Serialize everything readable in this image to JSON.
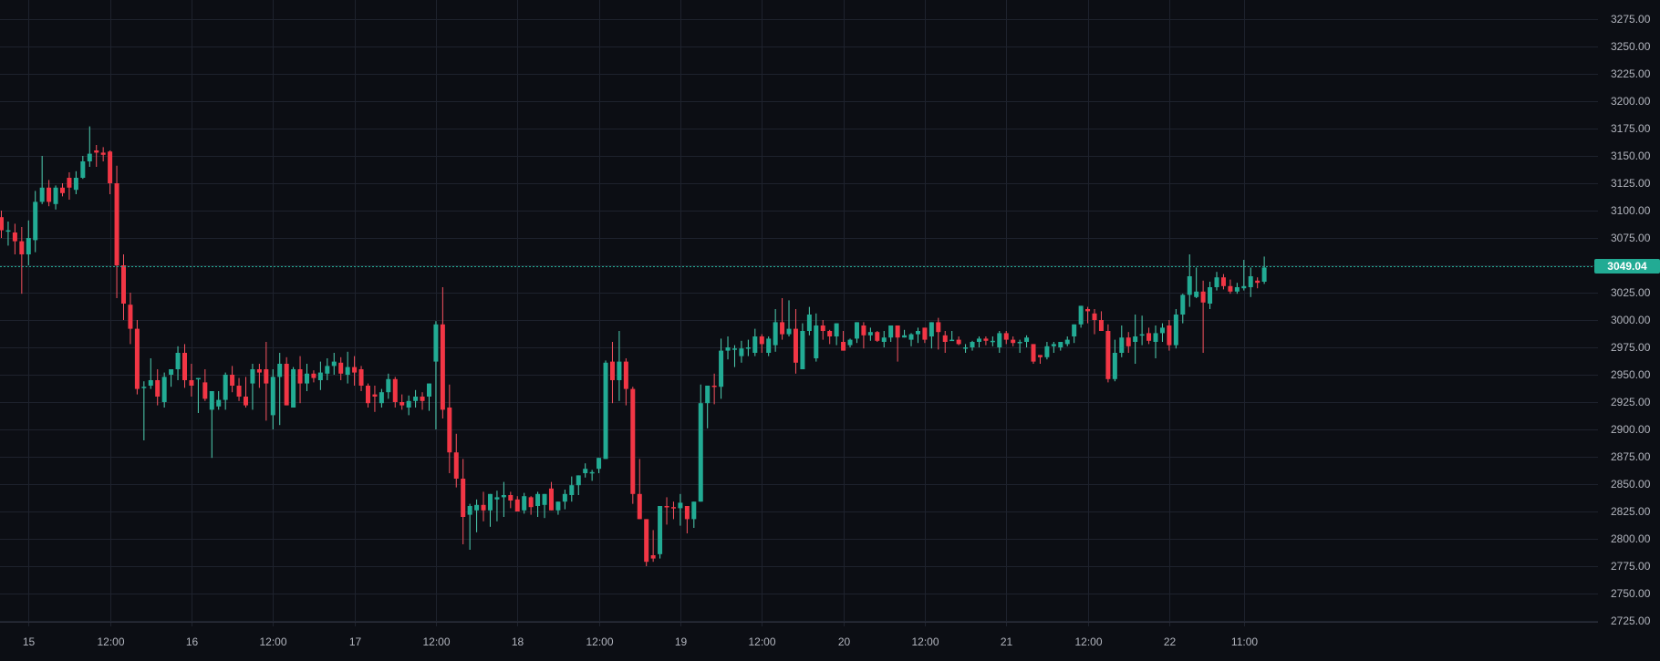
{
  "chart_data": {
    "type": "candlestick",
    "title": "",
    "xlabel": "",
    "ylabel": "",
    "ylim": [
      2725,
      3275
    ],
    "grid": true,
    "interval": "1h",
    "colors": {
      "background": "#0c0e14",
      "grid": "#1e222d",
      "up": "#22ab94",
      "up_wick": "#4fd1b3",
      "down": "#f23645",
      "down_wick": "#f7525f",
      "axis_text": "#b2b5be",
      "last_price_bg": "#22ab94",
      "last_price_line": "#22ab94"
    },
    "y_ticks": [
      "3275.00",
      "3250.00",
      "3225.00",
      "3200.00",
      "3175.00",
      "3150.00",
      "3125.00",
      "3100.00",
      "3075.00",
      "3025.00",
      "3000.00",
      "2975.00",
      "2950.00",
      "2925.00",
      "2900.00",
      "2875.00",
      "2850.00",
      "2825.00",
      "2800.00",
      "2775.00",
      "2750.00",
      "2725.00"
    ],
    "y_tick_values": [
      3275,
      3250,
      3225,
      3200,
      3175,
      3150,
      3125,
      3100,
      3075,
      3050,
      3025,
      3000,
      2975,
      2950,
      2925,
      2900,
      2875,
      2850,
      2825,
      2800,
      2775,
      2750,
      2725
    ],
    "x_ticks": [
      {
        "label": "15",
        "index": 4
      },
      {
        "label": "12:00",
        "index": 16
      },
      {
        "label": "16",
        "index": 28
      },
      {
        "label": "12:00",
        "index": 40
      },
      {
        "label": "17",
        "index": 52
      },
      {
        "label": "12:00",
        "index": 64
      },
      {
        "label": "18",
        "index": 76
      },
      {
        "label": "12:00",
        "index": 88
      },
      {
        "label": "19",
        "index": 100
      },
      {
        "label": "12:00",
        "index": 112
      },
      {
        "label": "20",
        "index": 124
      },
      {
        "label": "12:00",
        "index": 136
      },
      {
        "label": "21",
        "index": 148
      },
      {
        "label": "12:00",
        "index": 160
      },
      {
        "label": "22",
        "index": 172
      },
      {
        "label": "11:00",
        "index": 183
      }
    ],
    "last_price": 3049.04,
    "last_price_label": "3049.04",
    "candles_ohlc": [
      [
        3094,
        3100,
        3075,
        3082
      ],
      [
        3082,
        3090,
        3068,
        3082
      ],
      [
        3080,
        3088,
        3060,
        3072
      ],
      [
        3072,
        3085,
        3024,
        3060
      ],
      [
        3060,
        3091,
        3050,
        3075
      ],
      [
        3073,
        3118,
        3062,
        3108
      ],
      [
        3108,
        3150,
        3106,
        3121
      ],
      [
        3121,
        3128,
        3104,
        3108
      ],
      [
        3106,
        3123,
        3101,
        3121
      ],
      [
        3121,
        3125,
        3113,
        3116
      ],
      [
        3130,
        3135,
        3110,
        3121
      ],
      [
        3119,
        3136,
        3115,
        3130
      ],
      [
        3130,
        3150,
        3129,
        3145
      ],
      [
        3145,
        3177,
        3140,
        3152
      ],
      [
        3155,
        3160,
        3140,
        3153
      ],
      [
        3153,
        3158,
        3145,
        3151
      ],
      [
        3154,
        3155,
        3115,
        3125
      ],
      [
        3125,
        3141,
        3020,
        3050
      ],
      [
        3050,
        3060,
        3000,
        3015
      ],
      [
        3014,
        3025,
        2978,
        2992
      ],
      [
        2992,
        3000,
        2932,
        2937
      ],
      [
        2938,
        2944,
        2890,
        2939
      ],
      [
        2940,
        2965,
        2937,
        2945
      ],
      [
        2945,
        2955,
        2922,
        2930
      ],
      [
        2925,
        2952,
        2920,
        2948
      ],
      [
        2950,
        2955,
        2939,
        2955
      ],
      [
        2955,
        2976,
        2945,
        2970
      ],
      [
        2970,
        2978,
        2938,
        2945
      ],
      [
        2945,
        2960,
        2930,
        2940
      ],
      [
        2947,
        2945,
        2915,
        2947
      ],
      [
        2943,
        2955,
        2926,
        2928
      ],
      [
        2918,
        2925,
        2874,
        2935
      ],
      [
        2921,
        2935,
        2918,
        2927
      ],
      [
        2927,
        2952,
        2918,
        2950
      ],
      [
        2950,
        2958,
        2934,
        2940
      ],
      [
        2940,
        2947,
        2926,
        2930
      ],
      [
        2930,
        2948,
        2920,
        2922
      ],
      [
        2942,
        2960,
        2918,
        2955
      ],
      [
        2955,
        2960,
        2938,
        2952
      ],
      [
        2955,
        2980,
        2908,
        2942
      ],
      [
        2913,
        2955,
        2900,
        2948
      ],
      [
        2948,
        2970,
        2904,
        2960
      ],
      [
        2960,
        2966,
        2926,
        2922
      ],
      [
        2920,
        2957,
        2930,
        2955
      ],
      [
        2955,
        2967,
        2924,
        2942
      ],
      [
        2942,
        2960,
        2935,
        2951
      ],
      [
        2951,
        2954,
        2943,
        2947
      ],
      [
        2945,
        2962,
        2936,
        2952
      ],
      [
        2951,
        2965,
        2945,
        2958
      ],
      [
        2958,
        2970,
        2950,
        2962
      ],
      [
        2961,
        2966,
        2945,
        2951
      ],
      [
        2950,
        2971,
        2942,
        2957
      ],
      [
        2957,
        2967,
        2940,
        2952
      ],
      [
        2955,
        2958,
        2935,
        2940
      ],
      [
        2940,
        2942,
        2920,
        2924
      ],
      [
        2932,
        2940,
        2916,
        2930
      ],
      [
        2924,
        2937,
        2920,
        2934
      ],
      [
        2934,
        2951,
        2928,
        2946
      ],
      [
        2946,
        2948,
        2920,
        2925
      ],
      [
        2925,
        2932,
        2918,
        2922
      ],
      [
        2920,
        2931,
        2913,
        2926
      ],
      [
        2926,
        2936,
        2920,
        2930
      ],
      [
        2930,
        2934,
        2918,
        2926
      ],
      [
        2930,
        2936,
        2917,
        2942
      ],
      [
        2962,
        2999,
        2900,
        2996
      ],
      [
        2996,
        3030,
        2910,
        2918
      ],
      [
        2920,
        2941,
        2860,
        2879
      ],
      [
        2879,
        2896,
        2847,
        2855
      ],
      [
        2855,
        2873,
        2795,
        2820
      ],
      [
        2822,
        2832,
        2790,
        2830
      ],
      [
        2826,
        2836,
        2806,
        2831
      ],
      [
        2831,
        2843,
        2816,
        2826
      ],
      [
        2826,
        2840,
        2811,
        2841
      ],
      [
        2836,
        2844,
        2816,
        2838
      ],
      [
        2838,
        2852,
        2820,
        2840
      ],
      [
        2840,
        2843,
        2828,
        2835
      ],
      [
        2836,
        2839,
        2825,
        2825
      ],
      [
        2826,
        2842,
        2823,
        2839
      ],
      [
        2838,
        2839,
        2822,
        2829
      ],
      [
        2830,
        2843,
        2820,
        2841
      ],
      [
        2831,
        2841,
        2819,
        2841
      ],
      [
        2846,
        2852,
        2833,
        2826
      ],
      [
        2826,
        2831,
        2822,
        2834
      ],
      [
        2834,
        2845,
        2827,
        2841
      ],
      [
        2840,
        2857,
        2834,
        2849
      ],
      [
        2849,
        2858,
        2840,
        2858
      ],
      [
        2860,
        2869,
        2856,
        2864
      ],
      [
        2860,
        2863,
        2853,
        2861
      ],
      [
        2864,
        2872,
        2860,
        2874
      ],
      [
        2873,
        2963,
        2873,
        2961
      ],
      [
        2962,
        2980,
        2924,
        2945
      ],
      [
        2945,
        2990,
        2926,
        2962
      ],
      [
        2962,
        2965,
        2922,
        2937
      ],
      [
        2937,
        2939,
        2832,
        2841
      ],
      [
        2841,
        2873,
        2827,
        2818
      ],
      [
        2818,
        2818,
        2775,
        2779
      ],
      [
        2785,
        2808,
        2779,
        2782
      ],
      [
        2786,
        2827,
        2782,
        2830
      ],
      [
        2830,
        2838,
        2813,
        2829
      ],
      [
        2829,
        2834,
        2818,
        2828
      ],
      [
        2828,
        2841,
        2812,
        2833
      ],
      [
        2830,
        2829,
        2805,
        2818
      ],
      [
        2818,
        2830,
        2810,
        2834
      ],
      [
        2834,
        2941,
        2836,
        2924
      ],
      [
        2924,
        2935,
        2901,
        2940
      ],
      [
        2940,
        2951,
        2923,
        2939
      ],
      [
        2939,
        2983,
        2928,
        2972
      ],
      [
        2972,
        2985,
        2964,
        2975
      ],
      [
        2974,
        2977,
        2957,
        2974
      ],
      [
        2967,
        2981,
        2961,
        2974
      ],
      [
        2974,
        2982,
        2967,
        2975
      ],
      [
        2970,
        2992,
        2967,
        2985
      ],
      [
        2985,
        2987,
        2970,
        2978
      ],
      [
        2970,
        2985,
        2967,
        2983
      ],
      [
        2977,
        3010,
        2971,
        2998
      ],
      [
        2998,
        3020,
        2982,
        2987
      ],
      [
        2987,
        3018,
        2985,
        2992
      ],
      [
        2992,
        3010,
        2951,
        2961
      ],
      [
        2955,
        2997,
        2955,
        2990
      ],
      [
        2990,
        3012,
        2986,
        3005
      ],
      [
        2965,
        3006,
        2962,
        2995
      ],
      [
        2995,
        3000,
        2982,
        2990
      ],
      [
        2990,
        2991,
        2978,
        2985
      ],
      [
        2985,
        2995,
        2977,
        2997
      ],
      [
        2980,
        2990,
        2973,
        2972
      ],
      [
        2977,
        2983,
        2975,
        2982
      ],
      [
        2983,
        2995,
        2979,
        2998
      ],
      [
        2995,
        2998,
        2974,
        2986
      ],
      [
        2986,
        2993,
        2981,
        2989
      ],
      [
        2989,
        2990,
        2980,
        2981
      ],
      [
        2980,
        2990,
        2975,
        2984
      ],
      [
        2984,
        2993,
        2980,
        2995
      ],
      [
        2995,
        2990,
        2962,
        2984
      ],
      [
        2984,
        2991,
        2984,
        2986
      ],
      [
        2982,
        2988,
        2976,
        2987
      ],
      [
        2987,
        2993,
        2979,
        2990
      ],
      [
        2993,
        2991,
        2979,
        2982
      ],
      [
        2985,
        2994,
        2974,
        2998
      ],
      [
        2998,
        3002,
        2973,
        2989
      ],
      [
        2986,
        2990,
        2970,
        2980
      ],
      [
        2982,
        2990,
        2981,
        2982
      ],
      [
        2982,
        2985,
        2977,
        2978
      ],
      [
        2975,
        2978,
        2970,
        2975
      ],
      [
        2975,
        2981,
        2972,
        2980
      ],
      [
        2980,
        2985,
        2975,
        2983
      ],
      [
        2983,
        2985,
        2977,
        2981
      ],
      [
        2981,
        2985,
        2976,
        2981
      ],
      [
        2975,
        2990,
        2970,
        2988
      ],
      [
        2988,
        2990,
        2978,
        2982
      ],
      [
        2982,
        2985,
        2976,
        2979
      ],
      [
        2979,
        2982,
        2970,
        2980
      ],
      [
        2980,
        2986,
        2975,
        2984
      ],
      [
        2978,
        2976,
        2960,
        2962
      ],
      [
        2968,
        2963,
        2960,
        2966
      ],
      [
        2966,
        2980,
        2964,
        2976
      ],
      [
        2976,
        2980,
        2970,
        2978
      ],
      [
        2975,
        2978,
        2972,
        2980
      ],
      [
        2978,
        2985,
        2976,
        2982
      ],
      [
        2985,
        2990,
        2979,
        2996
      ],
      [
        2996,
        3008,
        2993,
        3013
      ],
      [
        3010,
        3012,
        2997,
        3008
      ],
      [
        3006,
        3010,
        2987,
        3000
      ],
      [
        3000,
        3008,
        2990,
        2990
      ],
      [
        2990,
        2996,
        2943,
        2946
      ],
      [
        2946,
        2982,
        2944,
        2970
      ],
      [
        2970,
        2995,
        2966,
        2984
      ],
      [
        2984,
        2989,
        2970,
        2976
      ],
      [
        2980,
        3005,
        2960,
        2985
      ],
      [
        2987,
        3004,
        2977,
        2987
      ],
      [
        2988,
        2993,
        2978,
        2981
      ],
      [
        2980,
        2995,
        2965,
        2988
      ],
      [
        2988,
        2997,
        2980,
        2993
      ],
      [
        2995,
        3000,
        2972,
        2977
      ],
      [
        2977,
        3010,
        2974,
        3005
      ],
      [
        3005,
        3024,
        2997,
        3023
      ],
      [
        3023,
        3060,
        3012,
        3040
      ],
      [
        3021,
        3048,
        3020,
        3026
      ],
      [
        3026,
        3036,
        2970,
        3016
      ],
      [
        3015,
        3035,
        3010,
        3030
      ],
      [
        3030,
        3044,
        3027,
        3039
      ],
      [
        3039,
        3042,
        3028,
        3031
      ],
      [
        3031,
        3037,
        3024,
        3026
      ],
      [
        3026,
        3034,
        3024,
        3030
      ],
      [
        3029,
        3055,
        3027,
        3031
      ],
      [
        3030,
        3048,
        3021,
        3040
      ],
      [
        3036,
        3039,
        3029,
        3034
      ],
      [
        3035,
        3058,
        3033,
        3048
      ]
    ]
  },
  "axis": {
    "price_label_color": "#b2b5be"
  }
}
